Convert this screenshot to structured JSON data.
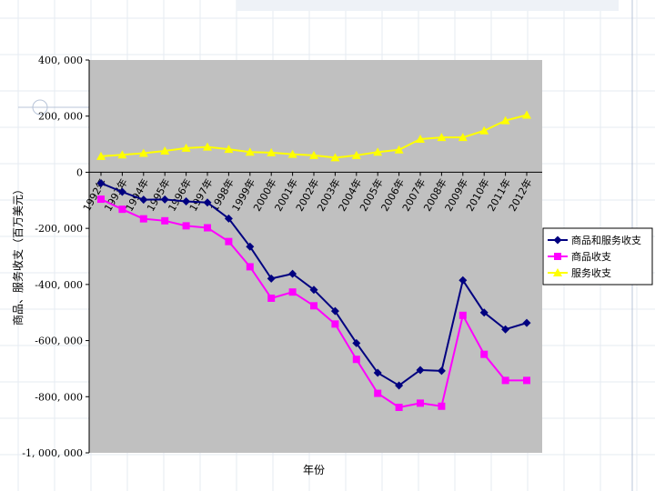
{
  "chart_data": {
    "type": "line",
    "title": "",
    "xlabel": "年份",
    "ylabel": "商品、服务收支（百万美元）",
    "ylim": [
      -1000000,
      400000
    ],
    "yticks": [
      400000,
      200000,
      0,
      -200000,
      -400000,
      -600000,
      -800000,
      -1000000
    ],
    "ytick_labels": [
      "400, 000",
      "200, 000",
      "0",
      "-200, 000",
      "-400, 000",
      "-600, 000",
      "-800, 000",
      "-1, 000, 000"
    ],
    "categories": [
      "1992年",
      "1993年",
      "1994年",
      "1995年",
      "1996年",
      "1997年",
      "1998年",
      "1999年",
      "2000年",
      "2001年",
      "2002年",
      "2003年",
      "2004年",
      "2005年",
      "2006年",
      "2007年",
      "2008年",
      "2009年",
      "2010年",
      "2011年",
      "2012年"
    ],
    "series": [
      {
        "name": "商品和服务收支",
        "color": "#000080",
        "marker": "diamond",
        "values": [
          -39000,
          -70000,
          -98000,
          -97000,
          -104000,
          -108000,
          -165000,
          -265000,
          -379000,
          -362000,
          -419000,
          -495000,
          -609000,
          -715000,
          -760000,
          -705000,
          -708000,
          -385000,
          -500000,
          -560000,
          -537000
        ]
      },
      {
        "name": "商品收支",
        "color": "#ff00ff",
        "marker": "square",
        "values": [
          -96000,
          -132000,
          -166000,
          -173000,
          -191000,
          -198000,
          -247000,
          -337000,
          -449000,
          -427000,
          -476000,
          -541000,
          -667000,
          -788000,
          -838000,
          -823000,
          -834000,
          -510000,
          -649000,
          -742000,
          -742000
        ]
      },
      {
        "name": "服务收支",
        "color": "#ffff00",
        "marker": "triangle",
        "values": [
          57000,
          62000,
          68000,
          76000,
          86000,
          90000,
          82000,
          72000,
          70000,
          64000,
          60000,
          52000,
          60000,
          72000,
          80000,
          118000,
          124000,
          124000,
          148000,
          184000,
          204000
        ]
      }
    ],
    "grid": false,
    "plot_background": "#c0c0c0",
    "legend_position": "right"
  }
}
